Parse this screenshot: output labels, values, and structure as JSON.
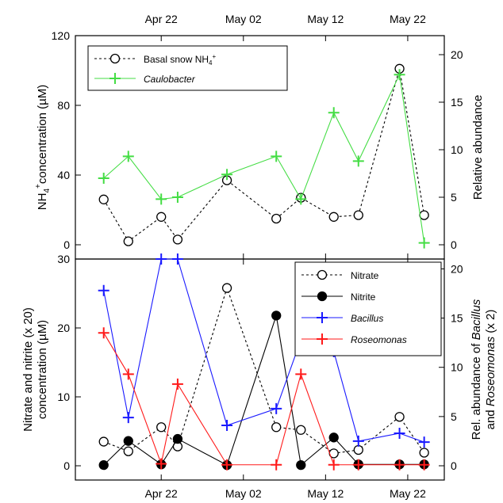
{
  "chart_data": [
    {
      "type": "line",
      "panel": "top",
      "x_tick_labels": [
        "Apr 22",
        "May 02",
        "May 12",
        "May 22"
      ],
      "x_tick_dates": [
        "2011-04-22",
        "2011-05-02",
        "2011-05-12",
        "2011-05-22"
      ],
      "x_tick_position": "top",
      "xlim": [
        "2011-04-13",
        "2011-05-25"
      ],
      "ylabel": "NH4+ concentration (µM)",
      "ylabel_parts": [
        "NH",
        "4",
        "+",
        "concentration (µM)"
      ],
      "ylim": [
        0,
        120
      ],
      "yticks": [
        0,
        40,
        80,
        120
      ],
      "y2label": "Relative abundance",
      "y2lim": [
        0,
        22
      ],
      "y2ticks": [
        0,
        5,
        10,
        15,
        20
      ],
      "legend_position": "top-left",
      "series": [
        {
          "name": "Basal snow NH4+",
          "name_parts": [
            "Basal snow NH",
            "4",
            "+"
          ],
          "axis": "left",
          "color": "#000000",
          "style": "dashed",
          "marker": "open-circle",
          "x": [
            "2011-04-15",
            "2011-04-18",
            "2011-04-22",
            "2011-04-24",
            "2011-04-30",
            "2011-05-06",
            "2011-05-09",
            "2011-05-13",
            "2011-05-16",
            "2011-05-21",
            "2011-05-24"
          ],
          "values": [
            26,
            2,
            16,
            3,
            37,
            15,
            27,
            16,
            17,
            101,
            17
          ]
        },
        {
          "name": "Caulobacter",
          "axis": "right",
          "color": "#44dd44",
          "style": "solid",
          "marker": "plus",
          "x": [
            "2011-04-15",
            "2011-04-18",
            "2011-04-22",
            "2011-04-24",
            "2011-04-30",
            "2011-05-06",
            "2011-05-09",
            "2011-05-13",
            "2011-05-16",
            "2011-05-21",
            "2011-05-24"
          ],
          "values": [
            7,
            9.3,
            4.8,
            5,
            7.4,
            9.3,
            4.8,
            13.9,
            8.8,
            17.9,
            0.2
          ]
        }
      ]
    },
    {
      "type": "line",
      "panel": "bottom",
      "x_tick_labels": [
        "Apr 22",
        "May 02",
        "May 12",
        "May 22"
      ],
      "x_tick_dates": [
        "2011-04-22",
        "2011-05-02",
        "2011-05-12",
        "2011-05-22"
      ],
      "x_tick_position": "bottom",
      "xlim": [
        "2011-04-13",
        "2011-05-25"
      ],
      "ylabel_lines": [
        "Nitrate and nitrite (x 20)",
        "concentration (µM)"
      ],
      "ylim": [
        0,
        30
      ],
      "yticks": [
        0,
        10,
        20,
        30
      ],
      "y2label_lines": [
        "Rel. abundance of Bacillus",
        "and Roseomonas (x 2)"
      ],
      "y2lim": [
        0,
        21
      ],
      "y2ticks": [
        0,
        5,
        10,
        15,
        20
      ],
      "legend_position": "top-right",
      "series": [
        {
          "name": "Nitrate",
          "axis": "left",
          "color": "#000000",
          "style": "dashed",
          "marker": "open-circle",
          "x": [
            "2011-04-15",
            "2011-04-18",
            "2011-04-22",
            "2011-04-24",
            "2011-04-30",
            "2011-05-06",
            "2011-05-09",
            "2011-05-13",
            "2011-05-16",
            "2011-05-21",
            "2011-05-24"
          ],
          "values": [
            3.5,
            2.1,
            5.6,
            2.8,
            25.8,
            5.6,
            5.2,
            1.8,
            2.3,
            7.1,
            1.9
          ]
        },
        {
          "name": "Nitrite",
          "axis": "left",
          "color": "#000000",
          "style": "solid",
          "marker": "filled-circle",
          "x": [
            "2011-04-15",
            "2011-04-18",
            "2011-04-22",
            "2011-04-24",
            "2011-04-30",
            "2011-05-06",
            "2011-05-09",
            "2011-05-13",
            "2011-05-16",
            "2011-05-21",
            "2011-05-24"
          ],
          "values": [
            0.1,
            3.6,
            0.2,
            3.9,
            0.1,
            21.8,
            0.1,
            4.1,
            0.2,
            0.2,
            0.2
          ]
        },
        {
          "name": "Bacillus",
          "axis": "right",
          "color": "#1a1aff",
          "style": "solid",
          "marker": "plus",
          "x": [
            "2011-04-15",
            "2011-04-18",
            "2011-04-22",
            "2011-04-24",
            "2011-04-30",
            "2011-05-06",
            "2011-05-09",
            "2011-05-13",
            "2011-05-16",
            "2011-05-21",
            "2011-05-24"
          ],
          "values": [
            17.8,
            4.9,
            21,
            21,
            4.1,
            5.8,
            12.8,
            11.6,
            2.5,
            3.3,
            2.4
          ]
        },
        {
          "name": "Roseomonas",
          "axis": "right",
          "color": "#ff1a1a",
          "style": "solid",
          "marker": "plus",
          "x": [
            "2011-04-15",
            "2011-04-18",
            "2011-04-22",
            "2011-04-24",
            "2011-04-30",
            "2011-05-06",
            "2011-05-09",
            "2011-05-13",
            "2011-05-16",
            "2011-05-21",
            "2011-05-24"
          ],
          "values": [
            13.5,
            9.3,
            0.2,
            8.3,
            0.1,
            0.1,
            9.3,
            0.1,
            0.1,
            0.1,
            0.1
          ]
        }
      ]
    }
  ]
}
